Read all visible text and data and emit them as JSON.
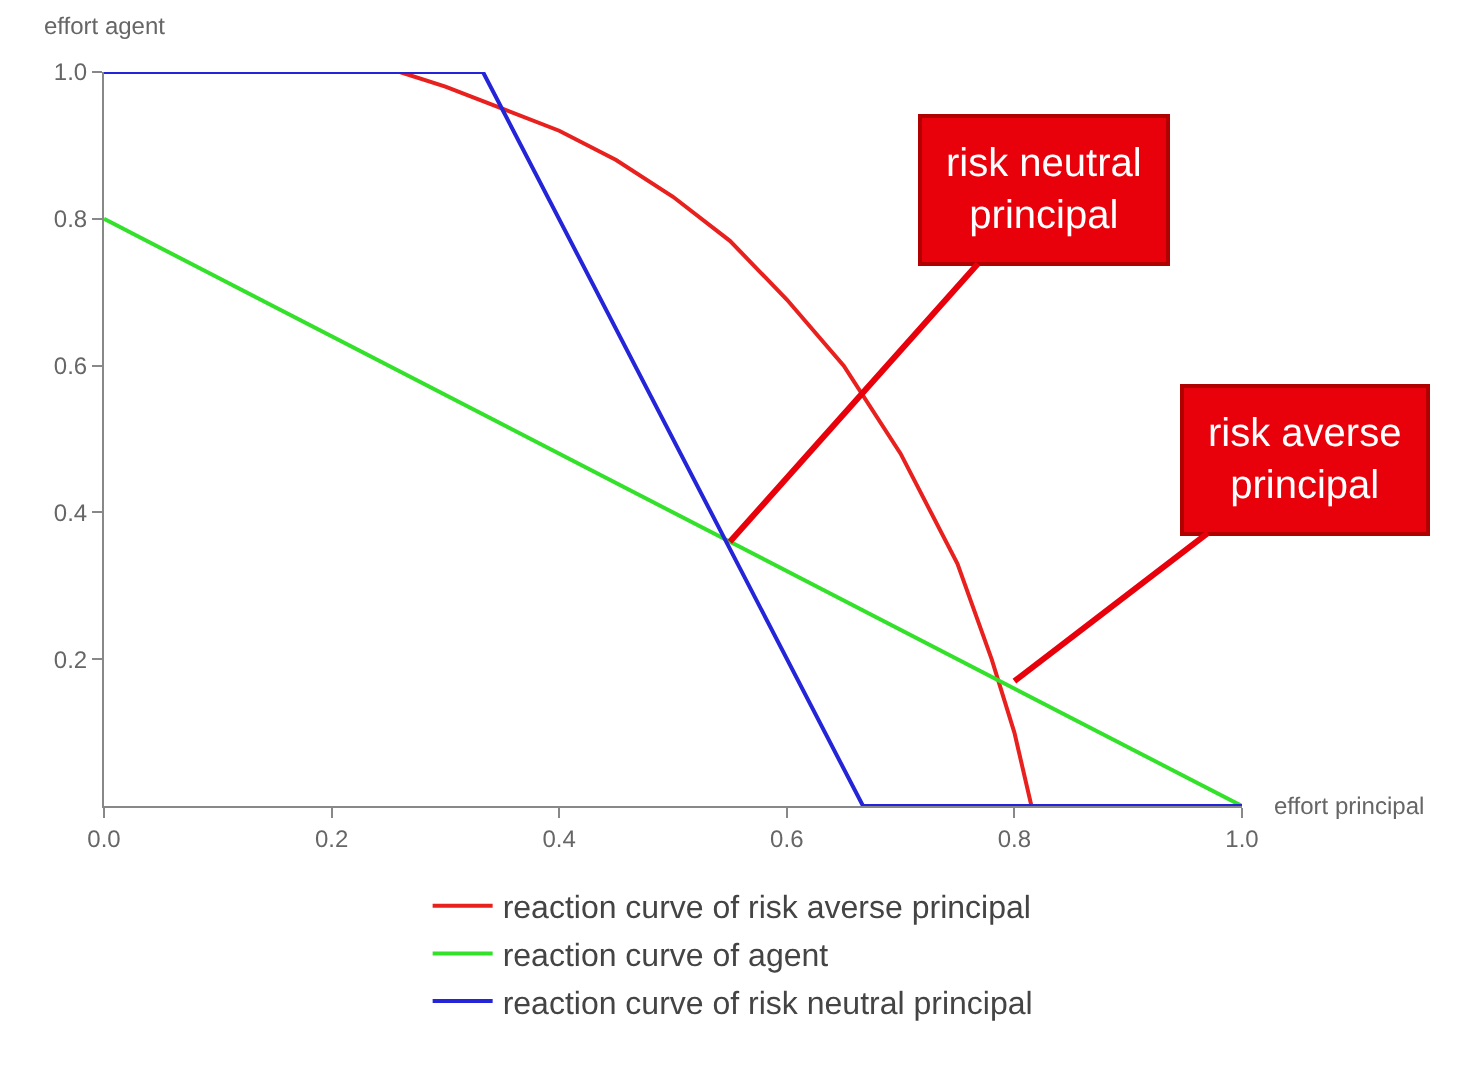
{
  "chart_data": {
    "type": "line",
    "xlabel": "effort principal",
    "ylabel": "effort agent",
    "xlim": [
      0,
      1
    ],
    "ylim": [
      0,
      1
    ],
    "xticks": [
      {
        "value": 0,
        "label": "0.0"
      },
      0.2,
      0.4,
      0.6,
      0.8,
      {
        "value": 1,
        "label": "1.0"
      }
    ],
    "yticks": [
      0.2,
      0.4,
      0.6,
      0.8,
      {
        "value": 1,
        "label": "1.0"
      }
    ],
    "legend": "bottom",
    "marker": "none",
    "line_style": "solid",
    "series": [
      {
        "name": "reaction curve of risk averse principal",
        "color": "#e8201e",
        "x": [
          0,
          0.26,
          0.3,
          0.35,
          0.4,
          0.45,
          0.5,
          0.55,
          0.6,
          0.65,
          0.7,
          0.75,
          0.78,
          0.8,
          0.815,
          1
        ],
        "values": [
          1,
          1,
          0.98,
          0.95,
          0.92,
          0.88,
          0.83,
          0.77,
          0.69,
          0.6,
          0.48,
          0.33,
          0.2,
          0.1,
          0,
          0
        ]
      },
      {
        "name": "reaction curve of agent",
        "color": "#33e02a",
        "x": [
          0,
          1
        ],
        "values": [
          0.8,
          0
        ]
      },
      {
        "name": "reaction curve of risk neutral principal",
        "color": "#2424d8",
        "x": [
          0,
          0.333,
          0.667,
          1
        ],
        "values": [
          1,
          1,
          0,
          0
        ]
      }
    ],
    "annotations": [
      {
        "text": "risk neutral principal",
        "x": 0.55,
        "y": 0.36
      },
      {
        "text": "risk averse principal",
        "x": 0.8,
        "y": 0.17
      }
    ]
  }
}
